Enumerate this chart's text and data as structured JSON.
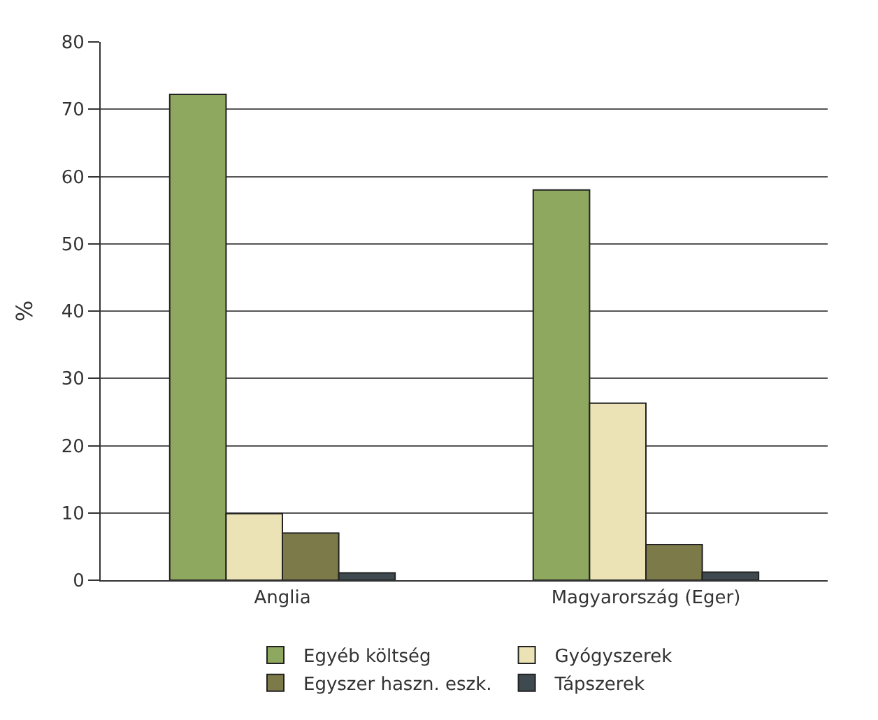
{
  "chart_data": {
    "type": "bar",
    "ylabel": "%",
    "categories": [
      "Anglia",
      "Magyarország (Eger)"
    ],
    "series": [
      {
        "name": "Egyéb költség",
        "color": "#8fa860",
        "values": [
          72.2,
          58
        ]
      },
      {
        "name": "Gyógyszerek",
        "color": "#ebe3b5",
        "values": [
          9.9,
          26.3
        ]
      },
      {
        "name": "Egyszer haszn. eszk.",
        "color": "#7d7a4a",
        "values": [
          7,
          5.3
        ]
      },
      {
        "name": "Tápszerek",
        "color": "#3e4a50",
        "values": [
          1.1,
          1.2
        ]
      }
    ],
    "ylim": [
      0,
      80
    ],
    "yticks": [
      0,
      10,
      20,
      30,
      40,
      50,
      60,
      70,
      80
    ],
    "grid": "y",
    "legend": "bottom"
  }
}
